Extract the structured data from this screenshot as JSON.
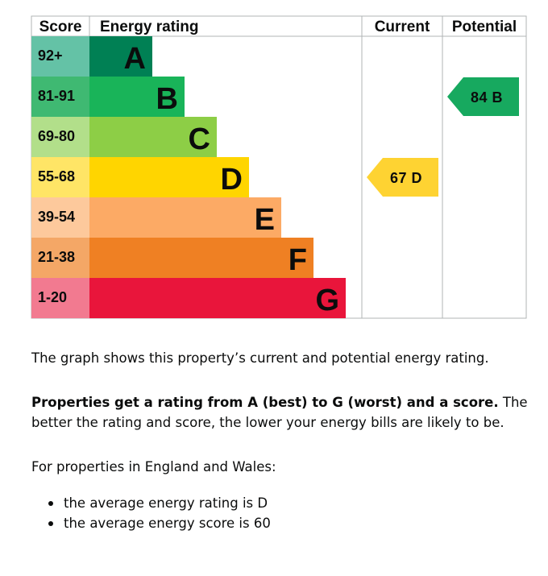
{
  "chart_data": {
    "type": "bar",
    "headers": {
      "score": "Score",
      "rating": "Energy rating",
      "current": "Current",
      "potential": "Potential"
    },
    "bands": [
      {
        "letter": "A",
        "range": "92+",
        "color": "#008054",
        "score_color": "#64c2a6"
      },
      {
        "letter": "B",
        "range": "81-91",
        "color": "#19b459",
        "score_color": "#3fb972"
      },
      {
        "letter": "C",
        "range": "69-80",
        "color": "#8dce46",
        "score_color": "#b2df8a"
      },
      {
        "letter": "D",
        "range": "55-68",
        "color": "#ffd500",
        "score_color": "#ffe566"
      },
      {
        "letter": "E",
        "range": "39-54",
        "color": "#fcaa65",
        "score_color": "#fdc99c"
      },
      {
        "letter": "F",
        "range": "21-38",
        "color": "#ef8023",
        "score_color": "#f4a766"
      },
      {
        "letter": "G",
        "range": "1-20",
        "color": "#e9153b",
        "score_color": "#f27a90"
      }
    ],
    "current": {
      "score": 67,
      "band": "D",
      "label": "67 D",
      "color": "#fed332"
    },
    "potential": {
      "score": 84,
      "band": "B",
      "label": "84 B",
      "color": "#17a95f"
    }
  },
  "text": {
    "summary": "The graph shows this property’s current and potential energy rating.",
    "rating_bold": "Properties get a rating from A (best) to G (worst) and a score.",
    "rating_rest": " The better the rating and score, the lower your energy bills are likely to be.",
    "region_intro": "For properties in England and Wales:",
    "averages": [
      "the average energy rating is D",
      "the average energy score is 60"
    ]
  }
}
